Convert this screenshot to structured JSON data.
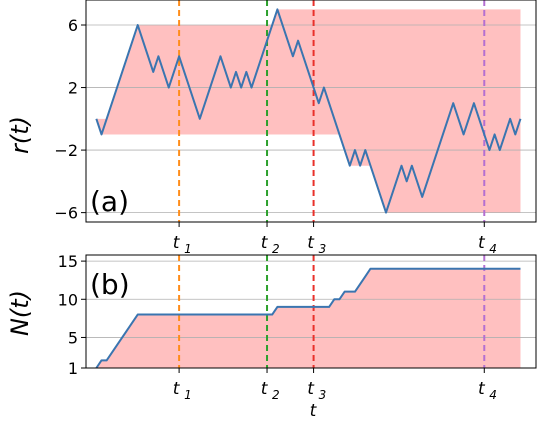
{
  "chart_data": [
    {
      "type": "line",
      "panel_label": "(a)",
      "ylabel": "r(t)",
      "ylim": [
        -6.6,
        7.6
      ],
      "xlim": [
        -2,
        85
      ],
      "yticks": [
        -6,
        -2,
        2,
        6
      ],
      "grid": true,
      "series": [
        {
          "color": "#3a75b0",
          "x": [
            0,
            1,
            2,
            3,
            4,
            5,
            6,
            7,
            8,
            9,
            10,
            11,
            12,
            13,
            14,
            15,
            16,
            17,
            18,
            19,
            20,
            21,
            22,
            23,
            24,
            25,
            26,
            27,
            28,
            29,
            30,
            31,
            32,
            33,
            34,
            35,
            36,
            37,
            38,
            39,
            40,
            41,
            42,
            43,
            44,
            45,
            46,
            47,
            48,
            49,
            50,
            51,
            52,
            53,
            54,
            55,
            56,
            57,
            58,
            59,
            60,
            61,
            62,
            63,
            64,
            65,
            66,
            67,
            68,
            69,
            70,
            71,
            72,
            73,
            74,
            75,
            76,
            77,
            78,
            79,
            80,
            81,
            82
          ],
          "values": [
            0,
            -1,
            0,
            1,
            2,
            3,
            4,
            5,
            6,
            5,
            4,
            3,
            4,
            3,
            2,
            3,
            4,
            3,
            2,
            1,
            0,
            1,
            2,
            3,
            4,
            3,
            2,
            3,
            2,
            3,
            2,
            3,
            4,
            5,
            6,
            7,
            6,
            5,
            4,
            5,
            4,
            3,
            2,
            1,
            2,
            1,
            0,
            -1,
            -2,
            -3,
            -2,
            -3,
            -2,
            -3,
            -4,
            -5,
            -6,
            -5,
            -4,
            -3,
            -4,
            -3,
            -4,
            -5,
            -4,
            -3,
            -2,
            -1,
            0,
            1,
            0,
            -1,
            0,
            1,
            0,
            -1,
            -2,
            -1,
            -2,
            -1,
            0,
            -1,
            0
          ]
        }
      ],
      "band": {
        "color": "#ffc0c0",
        "description": "running min/max envelope"
      },
      "vlines": [
        {
          "x": 16,
          "label": "t",
          "sub": "1",
          "color": "#ff8c1a"
        },
        {
          "x": 33,
          "label": "t",
          "sub": "2",
          "color": "#2ca02c"
        },
        {
          "x": 42,
          "label": "t",
          "sub": "3",
          "color": "#e8302a"
        },
        {
          "x": 75,
          "label": "t",
          "sub": "4",
          "color": "#b46fd1"
        }
      ]
    },
    {
      "type": "line",
      "panel_label": "(b)",
      "ylabel": "N(t)",
      "xlabel": "t",
      "ylim": [
        1,
        15.8
      ],
      "xlim": [
        -2,
        85
      ],
      "yticks": [
        1,
        5,
        10,
        15
      ],
      "grid": true,
      "series": [
        {
          "color": "#3a75b0",
          "x": [
            0,
            1,
            2,
            3,
            4,
            5,
            6,
            7,
            8,
            9,
            10,
            11,
            12,
            13,
            14,
            15,
            16,
            17,
            18,
            19,
            20,
            21,
            22,
            23,
            24,
            25,
            26,
            27,
            28,
            29,
            30,
            31,
            32,
            33,
            34,
            35,
            36,
            37,
            38,
            39,
            40,
            41,
            42,
            43,
            44,
            45,
            46,
            47,
            48,
            49,
            50,
            51,
            52,
            53,
            54,
            55,
            56,
            57,
            58,
            59,
            60,
            61,
            62,
            63,
            64,
            65,
            66,
            67,
            68,
            69,
            70,
            71,
            72,
            73,
            74,
            75,
            76,
            77,
            78,
            79,
            80,
            81,
            82
          ],
          "values": [
            1,
            2,
            2,
            3,
            4,
            5,
            6,
            7,
            8,
            8,
            8,
            8,
            8,
            8,
            8,
            8,
            8,
            8,
            8,
            8,
            8,
            8,
            8,
            8,
            8,
            8,
            8,
            8,
            8,
            8,
            8,
            8,
            8,
            8,
            8,
            9,
            9,
            9,
            9,
            9,
            9,
            9,
            9,
            9,
            9,
            9,
            10,
            10,
            11,
            11,
            11,
            12,
            13,
            14,
            14,
            14,
            14,
            14,
            14,
            14,
            14,
            14,
            14,
            14,
            14,
            14,
            14,
            14,
            14,
            14,
            14,
            14,
            14,
            14,
            14,
            14,
            14,
            14,
            14,
            14,
            14,
            14,
            14
          ]
        }
      ],
      "band": {
        "color": "#ffc0c0"
      },
      "vlines": [
        {
          "x": 16,
          "label": "t",
          "sub": "1",
          "color": "#ff8c1a"
        },
        {
          "x": 33,
          "label": "t",
          "sub": "2",
          "color": "#2ca02c"
        },
        {
          "x": 42,
          "label": "t",
          "sub": "3",
          "color": "#e8302a"
        },
        {
          "x": 75,
          "label": "t",
          "sub": "4",
          "color": "#b46fd1"
        }
      ]
    }
  ]
}
